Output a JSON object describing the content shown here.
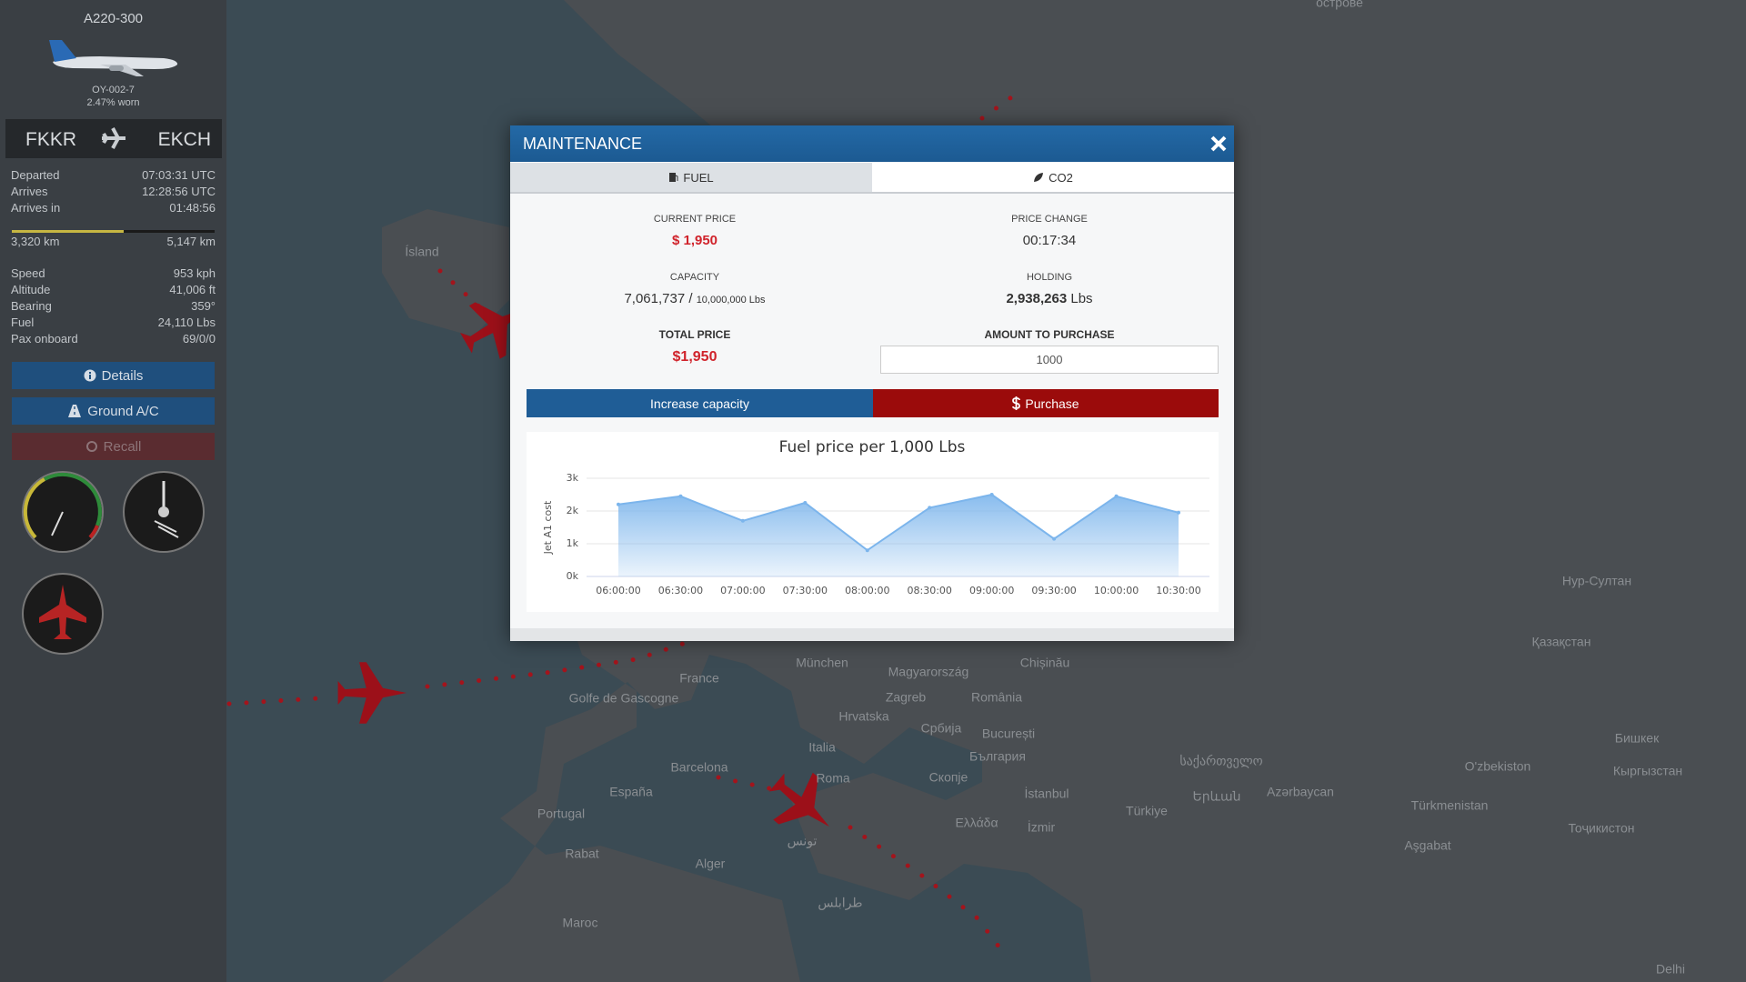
{
  "sidebar": {
    "aircraft_model": "A220-300",
    "registration": "OY-002-7",
    "wear": "2.47% worn",
    "origin": "FKKR",
    "destination": "EKCH",
    "flight_info": [
      {
        "label": "Departed",
        "value": "07:03:31 UTC"
      },
      {
        "label": "Arrives",
        "value": "12:28:56 UTC"
      },
      {
        "label": "Arrives in",
        "value": "01:48:56"
      }
    ],
    "distance_flown": "3,320 km",
    "distance_total": "5,147 km",
    "stats": [
      {
        "label": "Speed",
        "value": "953 kph"
      },
      {
        "label": "Altitude",
        "value": "41,006 ft"
      },
      {
        "label": "Bearing",
        "value": "359°"
      },
      {
        "label": "Fuel",
        "value": "24,110 Lbs"
      },
      {
        "label": "Pax onboard",
        "value": "69/0/0"
      }
    ],
    "buttons": [
      "Details",
      "Ground A/C",
      "Recall"
    ]
  },
  "modal": {
    "title": "MAINTENANCE",
    "tabs": [
      "FUEL",
      "CO2"
    ],
    "current_price_label": "CURRENT PRICE",
    "current_price": "$ 1,950",
    "price_change_label": "PRICE CHANGE",
    "price_change": "00:17:34",
    "capacity_label": "CAPACITY",
    "capacity_used": "7,061,737 /",
    "capacity_max": "10,000,000 Lbs",
    "holding_label": "HOLDING",
    "holding_value": "2,938,263",
    "holding_unit": "Lbs",
    "total_price_label": "TOTAL PRICE",
    "total_price": "$1,950",
    "amount_label": "AMOUNT TO PURCHASE",
    "amount_value": "1000",
    "increase_button": "Increase capacity",
    "purchase_button": "Purchase"
  },
  "chart_data": {
    "type": "area",
    "title": "Fuel price per 1,000 Lbs",
    "y_label": "Jet A1 cost",
    "categories": [
      "06:00:00",
      "06:30:00",
      "07:00:00",
      "07:30:00",
      "08:00:00",
      "08:30:00",
      "09:00:00",
      "09:30:00",
      "10:00:00",
      "10:30:00"
    ],
    "values": [
      2200,
      2450,
      1700,
      2250,
      800,
      2100,
      2500,
      1150,
      2450,
      1950
    ],
    "color": "#7cb5ec",
    "ylim": [
      0,
      3000
    ],
    "yticks": [
      {
        "value": 0,
        "label": "0k"
      },
      {
        "value": 1000,
        "label": "1k"
      },
      {
        "value": 2000,
        "label": "2k"
      },
      {
        "value": 3000,
        "label": "3k"
      }
    ],
    "grid": true
  },
  "map_labels": [
    "острове",
    "Ísland",
    "France",
    "München",
    "Magyarország",
    "Zagreb",
    "Hrvatska",
    "România",
    "Chișinău",
    "Србија",
    "București",
    "България",
    "Italia",
    "Roma",
    "Скопје",
    "Barcelona",
    "España",
    "Portugal",
    "Rabat",
    "Alger",
    "تونس",
    "طرابلس",
    "Ελλάδα",
    "İstanbul",
    "İzmir",
    "Türkiye",
    "საქართველო",
    "Երևան",
    "Azərbaycan",
    "O'zbekiston",
    "Türkmenistan",
    "Aşgabat",
    "Тоҷикистон",
    "Бишкек",
    "Кыргызстан",
    "Нур-Султан",
    "Қазақстан",
    "Delhi",
    "Golfe de Gascogne",
    "Maroc"
  ]
}
